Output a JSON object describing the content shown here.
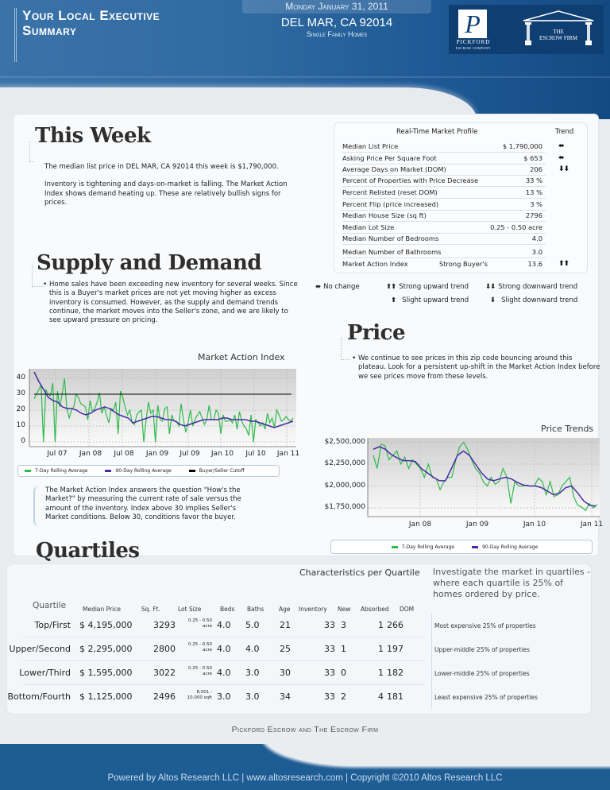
{
  "header": {
    "title_line1": "Your Local Executive",
    "title_line2": "Summary",
    "date": "Monday January 31, 2011",
    "location": "DEL MAR, CA 92014",
    "property_type": "Single Family Homes",
    "logos": {
      "pickford_mark": "P",
      "pickford_name": "PICKFORD",
      "pickford_sub": "ESCROW COMPANY",
      "firm_line1": "THE",
      "firm_line2": "ESCROW FIRM"
    },
    "colors": {
      "primary": "#2f6aa2",
      "dark": "#0f3f72"
    }
  },
  "this_week": {
    "title": "This Week",
    "paragraphs": [
      "The median list price in DEL MAR, CA 92014 this week is $1,790,000.",
      "Inventory is tightening and days-on-market is falling. The Market Action Index shows demand heating up. These are relatively bullish signs for prices."
    ]
  },
  "market_profile": {
    "title": "Real-Time Market Profile",
    "trend_header": "Trend",
    "rows": [
      {
        "label": "Median List Price",
        "mid": "",
        "value": "$ 1,790,000",
        "trend": "⬌"
      },
      {
        "label": "Asking Price Per Square Foot",
        "mid": "",
        "value": "$ 653",
        "trend": "⬌"
      },
      {
        "label": "Average Days on Market (DOM)",
        "mid": "",
        "value": "206",
        "trend": "⬇⬇"
      },
      {
        "label": "Percent of Properties with Price Decrease",
        "mid": "",
        "value": "33 %",
        "trend": ""
      },
      {
        "label": "Percent Relisted (reset DOM)",
        "mid": "",
        "value": "13 %",
        "trend": ""
      },
      {
        "label": "Percent Flip (price increased)",
        "mid": "",
        "value": "3 %",
        "trend": ""
      },
      {
        "label": "Median House Size (sq ft)",
        "mid": "",
        "value": "2796",
        "trend": ""
      },
      {
        "label": "Median Lot Size",
        "mid": "",
        "value": "0.25 - 0.50 acre",
        "trend": ""
      },
      {
        "label": "Median Number of Bedrooms",
        "mid": "",
        "value": "4.0",
        "trend": ""
      },
      {
        "label": "Median Number of Bathrooms",
        "mid": "",
        "value": "3.0",
        "trend": ""
      },
      {
        "label": "Market Action Index",
        "mid": "Strong Buyer's",
        "value": "13.6",
        "trend": "⬆⬆"
      }
    ]
  },
  "trend_legend": {
    "no_change": {
      "icon": "⬌",
      "label": "No change"
    },
    "strong_up": {
      "icon": "⬆⬆",
      "label": "Strong upward trend"
    },
    "strong_down": {
      "icon": "⬇⬇",
      "label": "Strong downward trend"
    },
    "slight_up": {
      "icon": "⬆",
      "label": "Slight upward trend"
    },
    "slight_down": {
      "icon": "⬇",
      "label": "Slight downward trend"
    }
  },
  "supply_demand": {
    "title": "Supply and Demand",
    "text": "Home sales have been exceeding new inventory for several weeks. Since this is a Buyer's market prices are not yet moving higher as excess inventory is consumed.  However, as the supply and demand trends continue, the market moves into the Seller's zone, and we are likely to see upward pressure on pricing.",
    "mai_note": "The Market Action Index answers the question \"How's the Market?\" by measuring the current rate of sale versus the amount of the inventory.  Index above 30 implies Seller's Market conditions. Below 30, conditions favor the buyer."
  },
  "price": {
    "title": "Price",
    "text": "We continue to see prices in this zip code bouncing around this plateau. Look for a persistent up-shift in the Market Action Index before we see prices move from these levels."
  },
  "chart_data": [
    {
      "type": "line",
      "title": "Market Action Index",
      "xlabel": "",
      "ylabel": "",
      "x_ticks": [
        "Jul 07",
        "Jan 08",
        "Jul 08",
        "Jan 09",
        "Jul 09",
        "Jan 10",
        "Jul 10",
        "Jan 11"
      ],
      "y_ticks": [
        "0",
        "10",
        "20",
        "30",
        "40"
      ],
      "ylim": [
        0,
        45
      ],
      "grid": true,
      "legend_position": "bottom",
      "series": [
        {
          "name": "7-Day Rolling Average",
          "color": "#2dbb4a",
          "values": [
            27,
            30,
            33,
            36,
            0,
            33,
            30,
            29,
            37,
            0,
            32,
            22,
            30,
            40,
            21,
            15,
            20,
            22,
            30,
            28,
            24,
            23,
            22,
            14,
            26,
            19,
            21,
            25,
            31,
            18,
            22,
            17,
            12,
            21,
            20,
            25,
            5,
            32,
            28,
            22,
            17,
            20,
            12,
            11,
            17,
            19,
            20,
            0,
            14,
            25,
            18,
            20,
            0,
            23,
            14,
            13,
            21,
            22,
            5,
            17,
            13,
            13,
            10,
            24,
            14,
            6,
            12,
            20,
            10,
            14,
            17,
            19,
            15,
            11,
            14,
            23,
            14,
            14,
            20,
            18,
            5,
            17,
            13,
            13,
            14,
            12,
            17,
            8,
            19,
            13,
            10,
            8,
            4,
            17,
            0,
            14,
            12,
            10,
            12,
            8,
            18,
            12,
            15,
            9,
            20,
            17,
            13,
            14,
            16,
            14,
            13,
            15
          ]
        },
        {
          "name": "90-Day Rolling Average",
          "color": "#4b2aa6",
          "values": [
            44,
            38,
            33,
            28,
            26,
            25,
            22,
            21,
            21,
            20,
            18,
            17,
            18,
            20,
            21,
            22,
            21,
            19,
            17,
            16,
            15,
            12,
            13,
            14,
            15,
            16,
            16,
            15,
            14,
            14,
            13,
            11,
            10,
            11,
            12,
            13,
            14,
            14,
            14,
            14,
            15,
            15,
            14,
            14,
            14,
            14,
            13,
            13,
            12,
            11,
            10,
            9,
            10,
            11,
            12,
            13
          ]
        },
        {
          "name": "Buyer/Seller Cutoff",
          "color": "#000000",
          "values": [
            30,
            30
          ]
        }
      ]
    },
    {
      "type": "line",
      "title": "Price Trends",
      "xlabel": "",
      "ylabel": "",
      "x_ticks": [
        "Jan 08",
        "Jan 09",
        "Jan 10",
        "Jan 11"
      ],
      "y_ticks": [
        "$1,750,000",
        "$2,000,000",
        "$2,250,000",
        "$2,500,000"
      ],
      "ylim": [
        1650000,
        2550000
      ],
      "grid": true,
      "legend_position": "bottom",
      "series": [
        {
          "name": "7-Day Rolling Average",
          "color": "#2dbb4a",
          "values": [
            2350000,
            2200000,
            2480000,
            2460000,
            2300000,
            2350000,
            2400000,
            2250000,
            2330000,
            2200000,
            2300000,
            2250000,
            2200000,
            2100000,
            2250000,
            2100000,
            2080000,
            1960000,
            2050000,
            2100000,
            2100000,
            2300000,
            2450000,
            2500000,
            2420000,
            2300000,
            2200000,
            2150000,
            2050000,
            2000000,
            2100000,
            2020000,
            2050000,
            2200000,
            2100000,
            1800000,
            2050000,
            2000000,
            2000000,
            2010000,
            2000000,
            2000000,
            2090000,
            2050000,
            1900000,
            2050000,
            1880000,
            1900000,
            2000000,
            2050000,
            2100000,
            1880000,
            1780000,
            1760000,
            1720000,
            1800000,
            1750000,
            1790000
          ]
        },
        {
          "name": "90-Day Rolling Average",
          "color": "#4b2aa6",
          "values": [
            2420000,
            2450000,
            2420000,
            2360000,
            2320000,
            2290000,
            2290000,
            2280000,
            2200000,
            2150000,
            2100000,
            2060000,
            2060000,
            2200000,
            2350000,
            2400000,
            2350000,
            2250000,
            2150000,
            2080000,
            2060000,
            2080000,
            2100000,
            2080000,
            2040000,
            2010000,
            2000000,
            2000000,
            1980000,
            1940000,
            1900000,
            1920000,
            1980000,
            2000000,
            1920000,
            1830000,
            1780000,
            1770000
          ]
        }
      ]
    }
  ],
  "quartiles": {
    "title": "Quartiles",
    "chart_title": "Characteristics per Quartile",
    "intro": "Investigate the market in quartiles - where each quartile is 25% of homes ordered by price.",
    "columns": [
      "Quartile",
      "Median Price",
      "Sq. Ft.",
      "Lot Size",
      "Beds",
      "Baths",
      "Age",
      "Inventory",
      "New",
      "Absorbed",
      "DOM"
    ],
    "rows": [
      {
        "quartile": "Top/First",
        "price": "$ 4,195,000",
        "sqft": "3293",
        "lot1": "0.25 - 0.50",
        "lot2": "acre",
        "beds": "4.0",
        "baths": "5.0",
        "age": "21",
        "inventory": "33",
        "new": "3",
        "absorbed": "1",
        "dom": "266",
        "desc": "Most expensive 25% of properties"
      },
      {
        "quartile": "Upper/Second",
        "price": "$ 2,295,000",
        "sqft": "2800",
        "lot1": "0.25 - 0.50",
        "lot2": "acre",
        "beds": "4.0",
        "baths": "4.0",
        "age": "25",
        "inventory": "33",
        "new": "1",
        "absorbed": "1",
        "dom": "197",
        "desc": "Upper-middle 25% of properties"
      },
      {
        "quartile": "Lower/Third",
        "price": "$ 1,595,000",
        "sqft": "3022",
        "lot1": "0.25 - 0.50",
        "lot2": "acre",
        "beds": "4.0",
        "baths": "3.0",
        "age": "30",
        "inventory": "33",
        "new": "0",
        "absorbed": "1",
        "dom": "182",
        "desc": "Lower-middle 25% of properties"
      },
      {
        "quartile": "Bottom/Fourth",
        "price": "$ 1,125,000",
        "sqft": "2496",
        "lot1": "8,001 -",
        "lot2": "10,000 sqft",
        "beds": "3.0",
        "baths": "3.0",
        "age": "34",
        "inventory": "33",
        "new": "2",
        "absorbed": "4",
        "dom": "181",
        "desc": "Least expensive 25% of properties"
      }
    ]
  },
  "footer": {
    "firm_line": "Pickford Escrow and The Escrow Firm",
    "powered_by": "Powered by Altos Research LLC | www.altosresearch.com | Copyright ©2010 Altos Research LLC"
  }
}
